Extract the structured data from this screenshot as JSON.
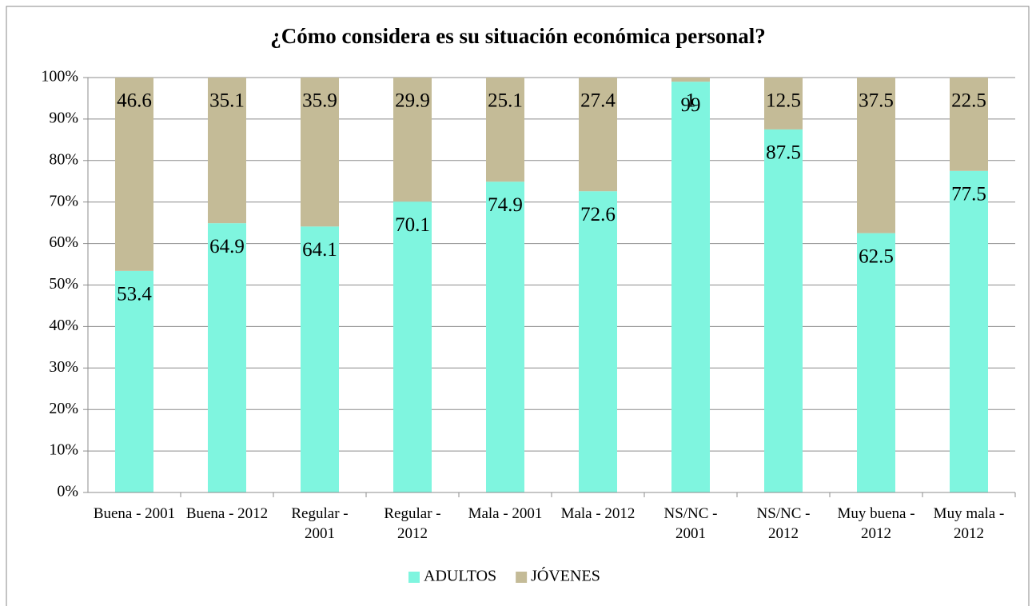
{
  "chart_data": {
    "type": "stacked_bar",
    "title": "¿Cómo considera es su situación económica personal?",
    "categories": [
      "Buena - 2001",
      "Buena - 2012",
      "Regular - 2001",
      "Regular - 2012",
      "Mala - 2001",
      "Mala - 2012",
      "NS/NC - 2001",
      "NS/NC - 2012",
      "Muy buena - 2012",
      "Muy mala - 2012"
    ],
    "series": [
      {
        "name": "ADULTOS",
        "color": "#7ff5df",
        "values": [
          53.4,
          64.9,
          64.1,
          70.1,
          74.9,
          72.6,
          99,
          87.5,
          62.5,
          77.5
        ]
      },
      {
        "name": "JÓVENES",
        "color": "#c4bb97",
        "values": [
          46.6,
          35.1,
          35.9,
          29.9,
          25.1,
          27.4,
          1,
          12.5,
          37.5,
          22.5
        ]
      }
    ],
    "ylim": [
      0,
      100
    ],
    "yticks": [
      {
        "value": 0,
        "label": "0%"
      },
      {
        "value": 10,
        "label": "10%"
      },
      {
        "value": 20,
        "label": "20%"
      },
      {
        "value": 30,
        "label": "30%"
      },
      {
        "value": 40,
        "label": "40%"
      },
      {
        "value": 50,
        "label": "50%"
      },
      {
        "value": 60,
        "label": "60%"
      },
      {
        "value": 70,
        "label": "70%"
      },
      {
        "value": 80,
        "label": "80%"
      },
      {
        "value": 90,
        "label": "90%"
      },
      {
        "value": 100,
        "label": "100%"
      }
    ],
    "grid": true,
    "legend": "bottom"
  }
}
